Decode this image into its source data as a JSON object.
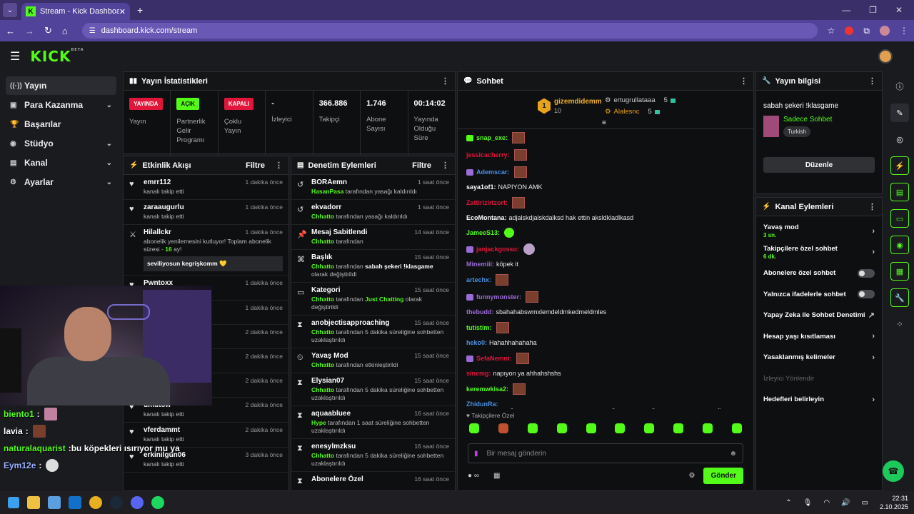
{
  "browser": {
    "tab_title": "Stream - Kick Dashboard",
    "tab_favicon": "K",
    "url": "dashboard.kick.com/stream"
  },
  "header": {
    "logo": "KICK",
    "logo_sup": "BETA"
  },
  "sidebar": {
    "items": [
      {
        "label": "Yayın",
        "icon": "broadcast-icon",
        "glyph": "((·))",
        "chev": ""
      },
      {
        "label": "Para Kazanma",
        "icon": "money-icon",
        "glyph": "▣",
        "chev": "⌄"
      },
      {
        "label": "Başarılar",
        "icon": "trophy-icon",
        "glyph": "🏆",
        "chev": ""
      },
      {
        "label": "Stüdyo",
        "icon": "studio-icon",
        "glyph": "◉",
        "chev": "⌄"
      },
      {
        "label": "Kanal",
        "icon": "channel-icon",
        "glyph": "▤",
        "chev": "⌄"
      },
      {
        "label": "Ayarlar",
        "icon": "gear-icon",
        "glyph": "⚙",
        "chev": "⌄"
      }
    ]
  },
  "stats": {
    "title": "Yayın İstatistikleri",
    "items": [
      {
        "badge": "YAYINDA",
        "caption": "Yayın"
      },
      {
        "badge": "AÇIK",
        "caption": "Partnerlik Gelir Programı"
      },
      {
        "badge": "KAPALI",
        "caption": "Çoklu Yayın"
      },
      {
        "value": "-",
        "caption": "İzleyici"
      },
      {
        "value": "366.886",
        "caption": "Takipçi"
      },
      {
        "value": "1.746",
        "caption": "Abone Sayısı"
      },
      {
        "value": "00:14:02",
        "caption": "Yayında Olduğu Süre"
      }
    ]
  },
  "activity": {
    "title": "Etkinlik Akışı",
    "filter": "Filtre",
    "items": [
      {
        "name": "emrr112",
        "time": "1 dakika önce",
        "sub": "kanalı takip etti"
      },
      {
        "name": "zaraaugurlu",
        "time": "1 dakika önce",
        "sub": "kanalı takip etti"
      },
      {
        "name": "Hilallckr",
        "time": "1 dakika önce",
        "sub_a": "abonelik yenilemesini kutluyor! Toplam abonelik süresi - ",
        "months": "16",
        "sub_b": " ay!",
        "msg": "seviliyosun kegrişkomm"
      },
      {
        "name": "Pwntoxx",
        "time": "1 dakika önce",
        "sub": "kanalı takip etti"
      },
      {
        "name": "",
        "time": "1 dakika önce",
        "sub": ""
      },
      {
        "name": "",
        "time": "2 dakika önce",
        "sub": ""
      },
      {
        "name": "",
        "time": "2 dakika önce",
        "sub": ""
      },
      {
        "name": "",
        "time": "2 dakika önce",
        "sub": ""
      },
      {
        "name": "umutow",
        "time": "2 dakika önce",
        "sub": "kanalı takip etti"
      },
      {
        "name": "vferdammt",
        "time": "2 dakika önce",
        "sub": "kanalı takip etti"
      },
      {
        "name": "erkinilgun06",
        "time": "3 dakika önce",
        "sub": "kanalı takip etti"
      }
    ]
  },
  "moderation": {
    "title": "Denetim Eylemleri",
    "filter": "Filtre",
    "items": [
      {
        "icon": "undo-icon",
        "glyph": "↺",
        "name": "BORAemn",
        "time": "1 saat önce",
        "actor": "HasanPasa",
        "text": " tarafından yasağı kaldırıldı"
      },
      {
        "icon": "undo-icon",
        "glyph": "↺",
        "name": "ekvadorr",
        "time": "1 saat önce",
        "actor": "Chhatto",
        "text": " tarafından yasağı kaldırıldı"
      },
      {
        "icon": "pin-icon",
        "glyph": "📌",
        "name": "Mesaj Sabitlendi",
        "time": "14 saat önce",
        "actor": "Chhatto",
        "text": " tarafından"
      },
      {
        "icon": "title-icon",
        "glyph": "⌘",
        "name": "Başlık",
        "time": "15 saat önce",
        "actor": "Chhatto",
        "text": " tarafından ",
        "bold": "sabah şekeri !klasgame",
        "text2": " olarak değiştirildi"
      },
      {
        "icon": "category-icon",
        "glyph": "▭",
        "name": "Kategori",
        "time": "15 saat önce",
        "actor": "Chhatto",
        "text": " tarafından ",
        "bold": "Just Chatting",
        "text2": " olarak değiştirildi",
        "bold_green": true
      },
      {
        "icon": "hourglass-icon",
        "glyph": "⧗",
        "name": "anobjectisapproaching",
        "time": "15 saat önce",
        "actor": "Chhatto",
        "text": " tarafından 5 dakika süreliğine sohbetten uzaklaştırıldı"
      },
      {
        "icon": "slow-icon",
        "glyph": "⏲",
        "name": "Yavaş Mod",
        "time": "15 saat önce",
        "actor": "Chhatto",
        "text": " tarafından etkinleştirildi"
      },
      {
        "icon": "hourglass-icon",
        "glyph": "⧗",
        "name": "Elysian07",
        "time": "15 saat önce",
        "actor": "Chhatto",
        "text": " tarafından 5 dakika süreliğine sohbetten uzaklaştırıldı"
      },
      {
        "icon": "hourglass-icon",
        "glyph": "⧗",
        "name": "aquaabluee",
        "time": "16 saat önce",
        "actor": "Hype",
        "text": " tarafından 1 saat süreliğine sohbetten uzaklaştırıldı"
      },
      {
        "icon": "hourglass-icon",
        "glyph": "⧗",
        "name": "enesylmzksu",
        "time": "16 saat önce",
        "actor": "Chhatto",
        "text": " tarafından 5 dakika süreliğine sohbetten uzaklaştırıldı"
      },
      {
        "icon": "hourglass-icon",
        "glyph": "⧗",
        "name": "Abonelere Özel",
        "time": "16 saat önce",
        "actor": "",
        "text": ""
      }
    ]
  },
  "chat": {
    "title": "Sohbet",
    "leader": {
      "rank": "1",
      "name": "gizemdidemm",
      "count": "10"
    },
    "top2": {
      "name": "ertugrullataaa",
      "count": "5"
    },
    "top3": {
      "name": "Alalesnc",
      "count": "5"
    },
    "lines": [
      {
        "user": "snap_exe",
        "color": "#53fc18",
        "badge": "g",
        "text": "",
        "emote": "r"
      },
      {
        "user": "jessicacherry",
        "color": "#e0163a",
        "badge": "",
        "text": "",
        "emote": "r"
      },
      {
        "user": "Ademscar",
        "color": "#4a90e2",
        "badge": "p",
        "text": "",
        "emote": "r"
      },
      {
        "user": "saya1of1",
        "color": "#ffffff",
        "badge": "",
        "text": "NAPIYON AMK",
        "emote": ""
      },
      {
        "user": "Zattirizirtzort",
        "color": "#e0163a",
        "badge": "",
        "text": "",
        "emote": "r"
      },
      {
        "user": "EcoMontana",
        "color": "#ffffff",
        "badge": "",
        "text": "adjalskdjalskdalksd hak ettin aksldkladlkasd",
        "emote": ""
      },
      {
        "user": "JameeS13",
        "color": "#53fc18",
        "badge": "",
        "text": "",
        "emote": "g"
      },
      {
        "user": "janjackgosso",
        "color": "#e0163a",
        "badge": "p",
        "text": "",
        "emote": "p"
      },
      {
        "user": "Minemiii",
        "color": "#9b6bd6",
        "badge": "",
        "text": "köpek it",
        "emote": ""
      },
      {
        "user": "artechx",
        "color": "#4a90e2",
        "badge": "",
        "text": "",
        "emote": "r"
      },
      {
        "user": "funnymonster",
        "color": "#9b6bd6",
        "badge": "p",
        "text": "",
        "emote": "r"
      },
      {
        "user": "thebudd",
        "color": "#9b6bd6",
        "badge": "",
        "text": "sbahahabswmxlemdeldmkedmeldmles",
        "emote": ""
      },
      {
        "user": "tutistim",
        "color": "#53fc18",
        "badge": "",
        "text": "",
        "emote": "r"
      },
      {
        "user": "heko0",
        "color": "#4a90e2",
        "badge": "",
        "text": "Hahahhahahaha",
        "emote": ""
      },
      {
        "user": "SefaNemni",
        "color": "#e0163a",
        "badge": "p",
        "text": "",
        "emote": "r"
      },
      {
        "user": "sinemg",
        "color": "#e0163a",
        "badge": "",
        "text": "napıyon ya ahhahshshs",
        "emote": ""
      },
      {
        "user": "keremwkisa2",
        "color": "#53fc18",
        "badge": "",
        "text": "",
        "emote": "r"
      },
      {
        "user": "ZhidunRa",
        "color": "#4a90e2",
        "badge": "",
        "text": "AFSKUYGJHCÖEBEFAUHYIKJGLFECUHKLIYJOÖEFIKHLJYGÖBAEUHJKIFGLYBVNÖHUIYJKLOÇEÖFGVUIHLOKYJEFG",
        "emote": ""
      }
    ],
    "emote_label": "Takipçilere Özel",
    "input_placeholder": "Bir mesaj gönderin",
    "send": "Gönder"
  },
  "stream_info": {
    "title": "Yayın bilgisi",
    "stream_title": "sabah şekeri !klasgame",
    "category": "Sadece Sohbet",
    "tag": "Turkish",
    "edit": "Düzenle"
  },
  "channel_actions": {
    "title": "Kanal Eylemleri",
    "items": [
      {
        "label": "Yavaş mod",
        "sub": "3 sn.",
        "type": "chev"
      },
      {
        "label": "Takipçilere özel sohbet",
        "sub": "6 dk.",
        "type": "chev"
      },
      {
        "label": "Abonelere özel sohbet",
        "sub": "",
        "type": "toggle"
      },
      {
        "label": "Yalnızca ifadelerle sohbet",
        "sub": "",
        "type": "toggle"
      },
      {
        "label": "Yapay Zeka ile Sohbet Denetimi",
        "sub": "",
        "type": "ext"
      },
      {
        "label": "Hesap yaşı kısıtlaması",
        "sub": "",
        "type": "chev"
      },
      {
        "label": "Yasaklanmış kelimeler",
        "sub": "",
        "type": "chev"
      },
      {
        "label": "İzleyici Yönlendir",
        "sub": "",
        "type": "muted"
      },
      {
        "label": "Hedefleri belirleyin",
        "sub": "",
        "type": "chev"
      }
    ]
  },
  "overlay_chat": [
    {
      "user": "biento1",
      "color": "#53fc18"
    },
    {
      "user": "lavia",
      "color": "#ffffff"
    },
    {
      "user": "naturalaquarist",
      "color": "#53fc18",
      "text": "bu köpekleri ısırıyor mu ya"
    },
    {
      "user": "Eym12e",
      "color": "#9ab0ff"
    }
  ],
  "clock": {
    "time": "22:31",
    "date": "2.10.2025"
  }
}
